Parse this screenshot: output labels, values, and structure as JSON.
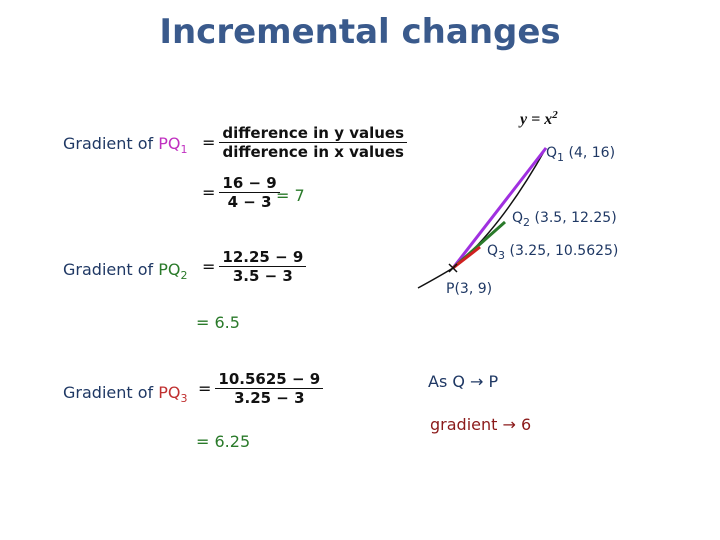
{
  "title": "Incremental changes",
  "curve_label": {
    "base": "y = x",
    "exp": "2"
  },
  "sections": [
    {
      "label": "Gradient of ",
      "pq": "PQ",
      "sub": "1",
      "formulas": [
        {
          "eq": "=",
          "num": "difference in y values",
          "den": "difference in x values"
        },
        {
          "eq": "=",
          "num": "16 − 9",
          "den": "4 − 3"
        }
      ],
      "result": "= 7"
    },
    {
      "label": "Gradient of ",
      "pq": "PQ",
      "sub": "2",
      "formulas": [
        {
          "eq": "=",
          "num": "12.25 − 9",
          "den": "3.5 − 3"
        }
      ],
      "result": "= 6.5"
    },
    {
      "label": "Gradient of ",
      "pq": "PQ",
      "sub": "3",
      "formulas": [
        {
          "eq": "=",
          "num": "10.5625 − 9",
          "den": "3.25 − 3"
        }
      ],
      "result": "= 6.25"
    }
  ],
  "points": [
    {
      "name": "Q",
      "sub": "1",
      "coords": "(4, 16)"
    },
    {
      "name": "Q",
      "sub": "2",
      "coords": "(3.5, 12.25)"
    },
    {
      "name": "Q",
      "sub": "3",
      "coords": "(3.25, 10.5625)"
    },
    {
      "name": "P",
      "coords": "(3, 9)"
    }
  ],
  "limits": [
    "As Q → P",
    "gradient → 6"
  ]
}
